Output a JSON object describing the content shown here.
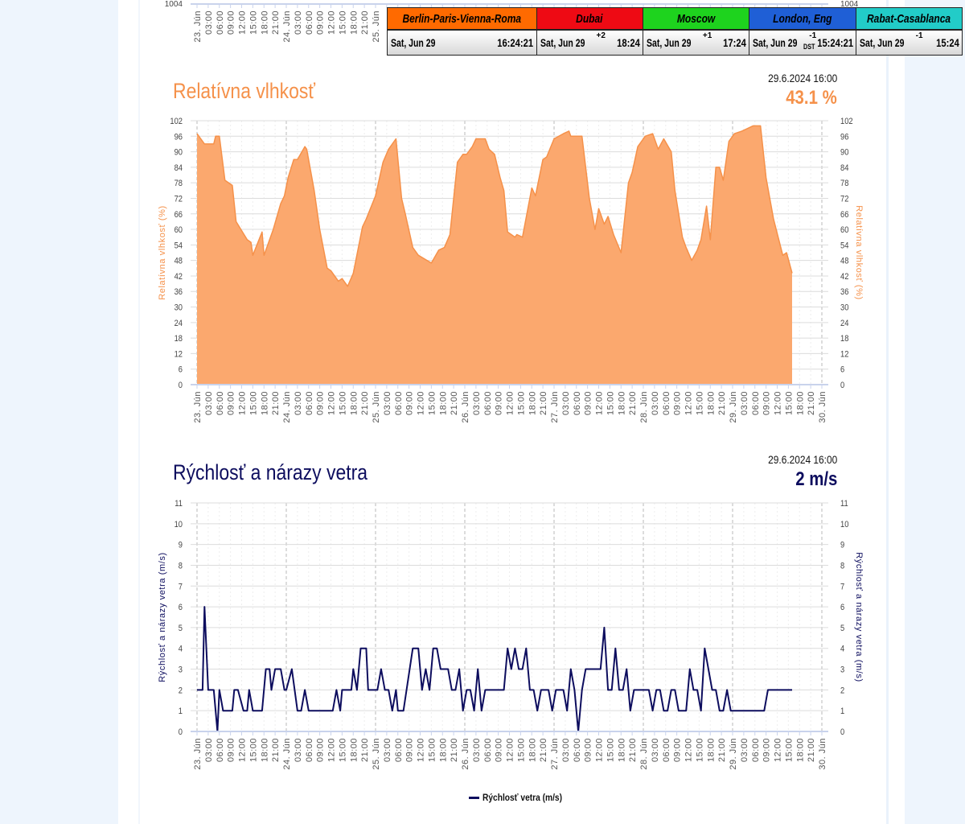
{
  "top_chart": {
    "y_tick_left": "1004",
    "y_tick_right": "1004"
  },
  "x_axis": {
    "days": [
      "23. Jún",
      "24. Jún",
      "25. Jún",
      "26. Jún",
      "27. Jún",
      "28. Jún",
      "29. Jún",
      "30. Jún"
    ],
    "hours": [
      "03:00",
      "06:00",
      "09:00",
      "12:00",
      "15:00",
      "18:00",
      "21:00"
    ]
  },
  "clocks": [
    {
      "city": "Berlin-Paris-Vienna-Roma",
      "date": "Sat, Jun 29",
      "offset": "",
      "dst": "",
      "time": "16:24:21",
      "color": "#ff6a00"
    },
    {
      "city": "Dubai",
      "date": "Sat, Jun 29",
      "offset": "+2",
      "dst": "",
      "time": "18:24",
      "color": "#ee0a14"
    },
    {
      "city": "Moscow",
      "date": "Sat, Jun 29",
      "offset": "+1",
      "dst": "",
      "time": "17:24",
      "color": "#1ed31e"
    },
    {
      "city": "London, Eng",
      "date": "Sat, Jun 29",
      "offset": "-1",
      "dst": "DST",
      "time": "15:24:21",
      "color": "#1f5fd6"
    },
    {
      "city": "Rabat-Casablanca",
      "date": "Sat, Jun 29",
      "offset": "-1",
      "dst": "",
      "time": "15:24",
      "color": "#22ccc8"
    }
  ],
  "humidity": {
    "title": "Relatívna vlhkosť",
    "timestamp": "29.6.2024 16:00",
    "current": "43.1 %",
    "color": "#f5914a",
    "fill": "#fba86e"
  },
  "wind": {
    "title": "Rýchlosť a nárazy vetra",
    "timestamp": "29.6.2024 16:00",
    "current": "2 m/s",
    "color": "#0d0d5e",
    "legend": "Rýchlosť vetra (m/s)"
  },
  "chart_data": [
    {
      "type": "area",
      "title": "Relatívna vlhkosť",
      "ylabel": "Relatívna vlhkosť (%)",
      "ylim": [
        0,
        102
      ],
      "yticks": [
        "0",
        "6",
        "12",
        "18",
        "24",
        "30",
        "36",
        "42",
        "48",
        "54",
        "60",
        "66",
        "72",
        "78",
        "84",
        "90",
        "96",
        "102"
      ],
      "xlim": [
        "2024-06-23 00:00",
        "2024-06-30 02:00"
      ],
      "grid": true,
      "points": [
        [
          "2024-06-23 00:00",
          97
        ],
        [
          "2024-06-23 02:00",
          93
        ],
        [
          "2024-06-23 04:30",
          93
        ],
        [
          "2024-06-23 05:00",
          96
        ],
        [
          "2024-06-23 06:00",
          96
        ],
        [
          "2024-06-23 07:30",
          79
        ],
        [
          "2024-06-23 09:30",
          77
        ],
        [
          "2024-06-23 10:30",
          63
        ],
        [
          "2024-06-23 13:30",
          56
        ],
        [
          "2024-06-23 14:30",
          55
        ],
        [
          "2024-06-23 15:00",
          50
        ],
        [
          "2024-06-23 17:30",
          59
        ],
        [
          "2024-06-23 18:00",
          50
        ],
        [
          "2024-06-23 20:30",
          60
        ],
        [
          "2024-06-23 22:30",
          70
        ],
        [
          "2024-06-23 23:30",
          73
        ],
        [
          "2024-06-24 00:30",
          80
        ],
        [
          "2024-06-24 02:00",
          87
        ],
        [
          "2024-06-24 03:00",
          87
        ],
        [
          "2024-06-24 05:00",
          92
        ],
        [
          "2024-06-24 05:30",
          91
        ],
        [
          "2024-06-24 07:30",
          75
        ],
        [
          "2024-06-24 09:00",
          60
        ],
        [
          "2024-06-24 11:00",
          45
        ],
        [
          "2024-06-24 12:00",
          44
        ],
        [
          "2024-06-24 14:00",
          40
        ],
        [
          "2024-06-24 15:00",
          41
        ],
        [
          "2024-06-24 16:30",
          38
        ],
        [
          "2024-06-24 18:00",
          43
        ],
        [
          "2024-06-24 20:30",
          61
        ],
        [
          "2024-06-24 21:30",
          64
        ],
        [
          "2024-06-25 00:00",
          73
        ],
        [
          "2024-06-25 02:00",
          86
        ],
        [
          "2024-06-25 03:30",
          91
        ],
        [
          "2024-06-25 05:30",
          95
        ],
        [
          "2024-06-25 07:00",
          72
        ],
        [
          "2024-06-25 08:00",
          66
        ],
        [
          "2024-06-25 10:00",
          53
        ],
        [
          "2024-06-25 11:30",
          50
        ],
        [
          "2024-06-25 15:00",
          47
        ],
        [
          "2024-06-25 17:00",
          52
        ],
        [
          "2024-06-25 18:30",
          53
        ],
        [
          "2024-06-25 20:00",
          58
        ],
        [
          "2024-06-25 22:00",
          86
        ],
        [
          "2024-06-25 23:30",
          89
        ],
        [
          "2024-06-26 00:30",
          89
        ],
        [
          "2024-06-26 02:00",
          92
        ],
        [
          "2024-06-26 03:00",
          95
        ],
        [
          "2024-06-26 05:30",
          95
        ],
        [
          "2024-06-26 06:30",
          91
        ],
        [
          "2024-06-26 08:00",
          89
        ],
        [
          "2024-06-26 09:30",
          80
        ],
        [
          "2024-06-26 10:30",
          75
        ],
        [
          "2024-06-26 11:30",
          59
        ],
        [
          "2024-06-26 13:30",
          57
        ],
        [
          "2024-06-26 14:00",
          58
        ],
        [
          "2024-06-26 15:30",
          57
        ],
        [
          "2024-06-26 18:00",
          76
        ],
        [
          "2024-06-26 19:00",
          73
        ],
        [
          "2024-06-26 21:00",
          87
        ],
        [
          "2024-06-26 22:00",
          88
        ],
        [
          "2024-06-27 00:00",
          95
        ],
        [
          "2024-06-27 02:30",
          97
        ],
        [
          "2024-06-27 04:00",
          98
        ],
        [
          "2024-06-27 04:30",
          96
        ],
        [
          "2024-06-27 07:30",
          96
        ],
        [
          "2024-06-27 09:30",
          72
        ],
        [
          "2024-06-27 11:00",
          60
        ],
        [
          "2024-06-27 12:00",
          68
        ],
        [
          "2024-06-27 13:30",
          62
        ],
        [
          "2024-06-27 14:30",
          65
        ],
        [
          "2024-06-27 16:00",
          58
        ],
        [
          "2024-06-27 18:00",
          51
        ],
        [
          "2024-06-27 20:00",
          78
        ],
        [
          "2024-06-27 21:00",
          82
        ],
        [
          "2024-06-27 22:30",
          92
        ],
        [
          "2024-06-28 00:30",
          96
        ],
        [
          "2024-06-28 02:30",
          97
        ],
        [
          "2024-06-28 04:00",
          91
        ],
        [
          "2024-06-28 05:30",
          95
        ],
        [
          "2024-06-28 07:30",
          90
        ],
        [
          "2024-06-28 08:30",
          75
        ],
        [
          "2024-06-28 10:30",
          57
        ],
        [
          "2024-06-28 11:30",
          53
        ],
        [
          "2024-06-28 13:00",
          48
        ],
        [
          "2024-06-28 14:30",
          52
        ],
        [
          "2024-06-28 15:30",
          56
        ],
        [
          "2024-06-28 17:00",
          69
        ],
        [
          "2024-06-28 18:00",
          56
        ],
        [
          "2024-06-28 19:30",
          84
        ],
        [
          "2024-06-28 20:30",
          84
        ],
        [
          "2024-06-28 21:30",
          79
        ],
        [
          "2024-06-28 23:00",
          94
        ],
        [
          "2024-06-29 00:30",
          97
        ],
        [
          "2024-06-29 02:30",
          98
        ],
        [
          "2024-06-29 05:30",
          100
        ],
        [
          "2024-06-29 07:30",
          100
        ],
        [
          "2024-06-29 09:00",
          80
        ],
        [
          "2024-06-29 11:00",
          64
        ],
        [
          "2024-06-29 13:30",
          50
        ],
        [
          "2024-06-29 14:30",
          51
        ],
        [
          "2024-06-29 16:00",
          43.1
        ]
      ]
    },
    {
      "type": "line",
      "title": "Rýchlosť a nárazy vetra",
      "ylabel": "Rýchlosť a nárazy vetra (m/s)",
      "ylim": [
        0,
        11
      ],
      "yticks": [
        "0",
        "1",
        "2",
        "3",
        "4",
        "5",
        "6",
        "7",
        "8",
        "9",
        "10",
        "11"
      ],
      "xlim": [
        "2024-06-23 00:00",
        "2024-06-30 02:00"
      ],
      "grid": true,
      "legend": "bottom",
      "series": [
        {
          "name": "Rýchlosť vetra (m/s)",
          "points": [
            [
              "2024-06-23 00:00",
              2
            ],
            [
              "2024-06-23 01:30",
              2
            ],
            [
              "2024-06-23 02:00",
              6
            ],
            [
              "2024-06-23 03:00",
              2
            ],
            [
              "2024-06-23 04:30",
              2
            ],
            [
              "2024-06-23 05:30",
              0
            ],
            [
              "2024-06-23 06:00",
              2
            ],
            [
              "2024-06-23 07:00",
              1
            ],
            [
              "2024-06-23 09:30",
              1
            ],
            [
              "2024-06-23 10:00",
              2
            ],
            [
              "2024-06-23 11:00",
              2
            ],
            [
              "2024-06-23 12:30",
              1
            ],
            [
              "2024-06-23 13:30",
              1
            ],
            [
              "2024-06-23 14:00",
              2
            ],
            [
              "2024-06-23 15:00",
              1
            ],
            [
              "2024-06-23 17:30",
              1
            ],
            [
              "2024-06-23 18:30",
              3
            ],
            [
              "2024-06-23 19:30",
              3
            ],
            [
              "2024-06-23 20:00",
              2
            ],
            [
              "2024-06-23 21:00",
              3
            ],
            [
              "2024-06-23 22:30",
              3
            ],
            [
              "2024-06-23 23:30",
              2
            ],
            [
              "2024-06-24 00:00",
              2
            ],
            [
              "2024-06-24 01:30",
              3
            ],
            [
              "2024-06-24 03:00",
              1
            ],
            [
              "2024-06-24 04:00",
              1
            ],
            [
              "2024-06-24 05:00",
              2
            ],
            [
              "2024-06-24 06:00",
              1
            ],
            [
              "2024-06-24 12:30",
              1
            ],
            [
              "2024-06-24 13:30",
              2
            ],
            [
              "2024-06-24 14:30",
              1
            ],
            [
              "2024-06-24 15:00",
              2
            ],
            [
              "2024-06-24 17:30",
              2
            ],
            [
              "2024-06-24 18:00",
              3
            ],
            [
              "2024-06-24 19:00",
              2
            ],
            [
              "2024-06-24 20:00",
              4
            ],
            [
              "2024-06-24 21:30",
              4
            ],
            [
              "2024-06-24 22:00",
              2
            ],
            [
              "2024-06-25 00:30",
              2
            ],
            [
              "2024-06-25 01:30",
              3
            ],
            [
              "2024-06-25 02:30",
              2
            ],
            [
              "2024-06-25 03:30",
              2
            ],
            [
              "2024-06-25 04:30",
              1
            ],
            [
              "2024-06-25 05:30",
              2
            ],
            [
              "2024-06-25 06:00",
              1
            ],
            [
              "2024-06-25 07:30",
              1
            ],
            [
              "2024-06-25 10:00",
              4
            ],
            [
              "2024-06-25 11:30",
              4
            ],
            [
              "2024-06-25 12:30",
              2
            ],
            [
              "2024-06-25 13:30",
              3
            ],
            [
              "2024-06-25 14:30",
              2
            ],
            [
              "2024-06-25 15:30",
              4
            ],
            [
              "2024-06-25 16:30",
              4
            ],
            [
              "2024-06-25 17:30",
              3
            ],
            [
              "2024-06-25 19:30",
              3
            ],
            [
              "2024-06-25 20:30",
              2
            ],
            [
              "2024-06-25 21:30",
              2
            ],
            [
              "2024-06-25 22:30",
              3
            ],
            [
              "2024-06-25 23:30",
              1
            ],
            [
              "2024-06-26 00:30",
              2
            ],
            [
              "2024-06-26 01:30",
              2
            ],
            [
              "2024-06-26 02:30",
              1
            ],
            [
              "2024-06-26 03:30",
              3
            ],
            [
              "2024-06-26 04:30",
              1
            ],
            [
              "2024-06-26 05:30",
              2
            ],
            [
              "2024-06-26 10:30",
              2
            ],
            [
              "2024-06-26 11:30",
              4
            ],
            [
              "2024-06-26 12:30",
              3
            ],
            [
              "2024-06-26 13:30",
              4
            ],
            [
              "2024-06-26 14:30",
              3
            ],
            [
              "2024-06-26 15:30",
              3
            ],
            [
              "2024-06-26 16:30",
              4
            ],
            [
              "2024-06-26 17:30",
              2
            ],
            [
              "2024-06-26 18:30",
              2
            ],
            [
              "2024-06-26 19:30",
              1
            ],
            [
              "2024-06-26 20:30",
              2
            ],
            [
              "2024-06-26 22:30",
              2
            ],
            [
              "2024-06-26 23:30",
              1
            ],
            [
              "2024-06-27 00:30",
              2
            ],
            [
              "2024-06-27 02:30",
              2
            ],
            [
              "2024-06-27 03:30",
              1
            ],
            [
              "2024-06-27 04:30",
              3
            ],
            [
              "2024-06-27 05:30",
              2
            ],
            [
              "2024-06-27 06:30",
              0
            ],
            [
              "2024-06-27 07:30",
              2
            ],
            [
              "2024-06-27 08:30",
              3
            ],
            [
              "2024-06-27 12:30",
              3
            ],
            [
              "2024-06-27 13:30",
              5
            ],
            [
              "2024-06-27 14:30",
              2
            ],
            [
              "2024-06-27 15:30",
              2
            ],
            [
              "2024-06-27 16:30",
              4
            ],
            [
              "2024-06-27 17:30",
              2
            ],
            [
              "2024-06-27 18:30",
              2
            ],
            [
              "2024-06-27 19:30",
              3
            ],
            [
              "2024-06-27 20:30",
              1
            ],
            [
              "2024-06-27 21:30",
              2
            ],
            [
              "2024-06-28 01:30",
              2
            ],
            [
              "2024-06-28 02:30",
              1
            ],
            [
              "2024-06-28 03:30",
              2
            ],
            [
              "2024-06-28 04:30",
              2
            ],
            [
              "2024-06-28 05:30",
              1
            ],
            [
              "2024-06-28 06:30",
              1
            ],
            [
              "2024-06-28 07:30",
              2
            ],
            [
              "2024-06-28 08:30",
              2
            ],
            [
              "2024-06-28 09:30",
              1
            ],
            [
              "2024-06-28 11:30",
              1
            ],
            [
              "2024-06-28 12:30",
              3
            ],
            [
              "2024-06-28 13:30",
              2
            ],
            [
              "2024-06-28 14:30",
              2
            ],
            [
              "2024-06-28 15:30",
              1
            ],
            [
              "2024-06-28 16:30",
              4
            ],
            [
              "2024-06-28 18:30",
              2
            ],
            [
              "2024-06-28 19:30",
              2
            ],
            [
              "2024-06-28 20:30",
              1
            ],
            [
              "2024-06-28 21:30",
              1
            ],
            [
              "2024-06-28 22:30",
              2
            ],
            [
              "2024-06-28 23:30",
              1
            ],
            [
              "2024-06-29 08:30",
              1
            ],
            [
              "2024-06-29 09:30",
              2
            ],
            [
              "2024-06-29 16:00",
              2
            ]
          ]
        }
      ]
    }
  ]
}
